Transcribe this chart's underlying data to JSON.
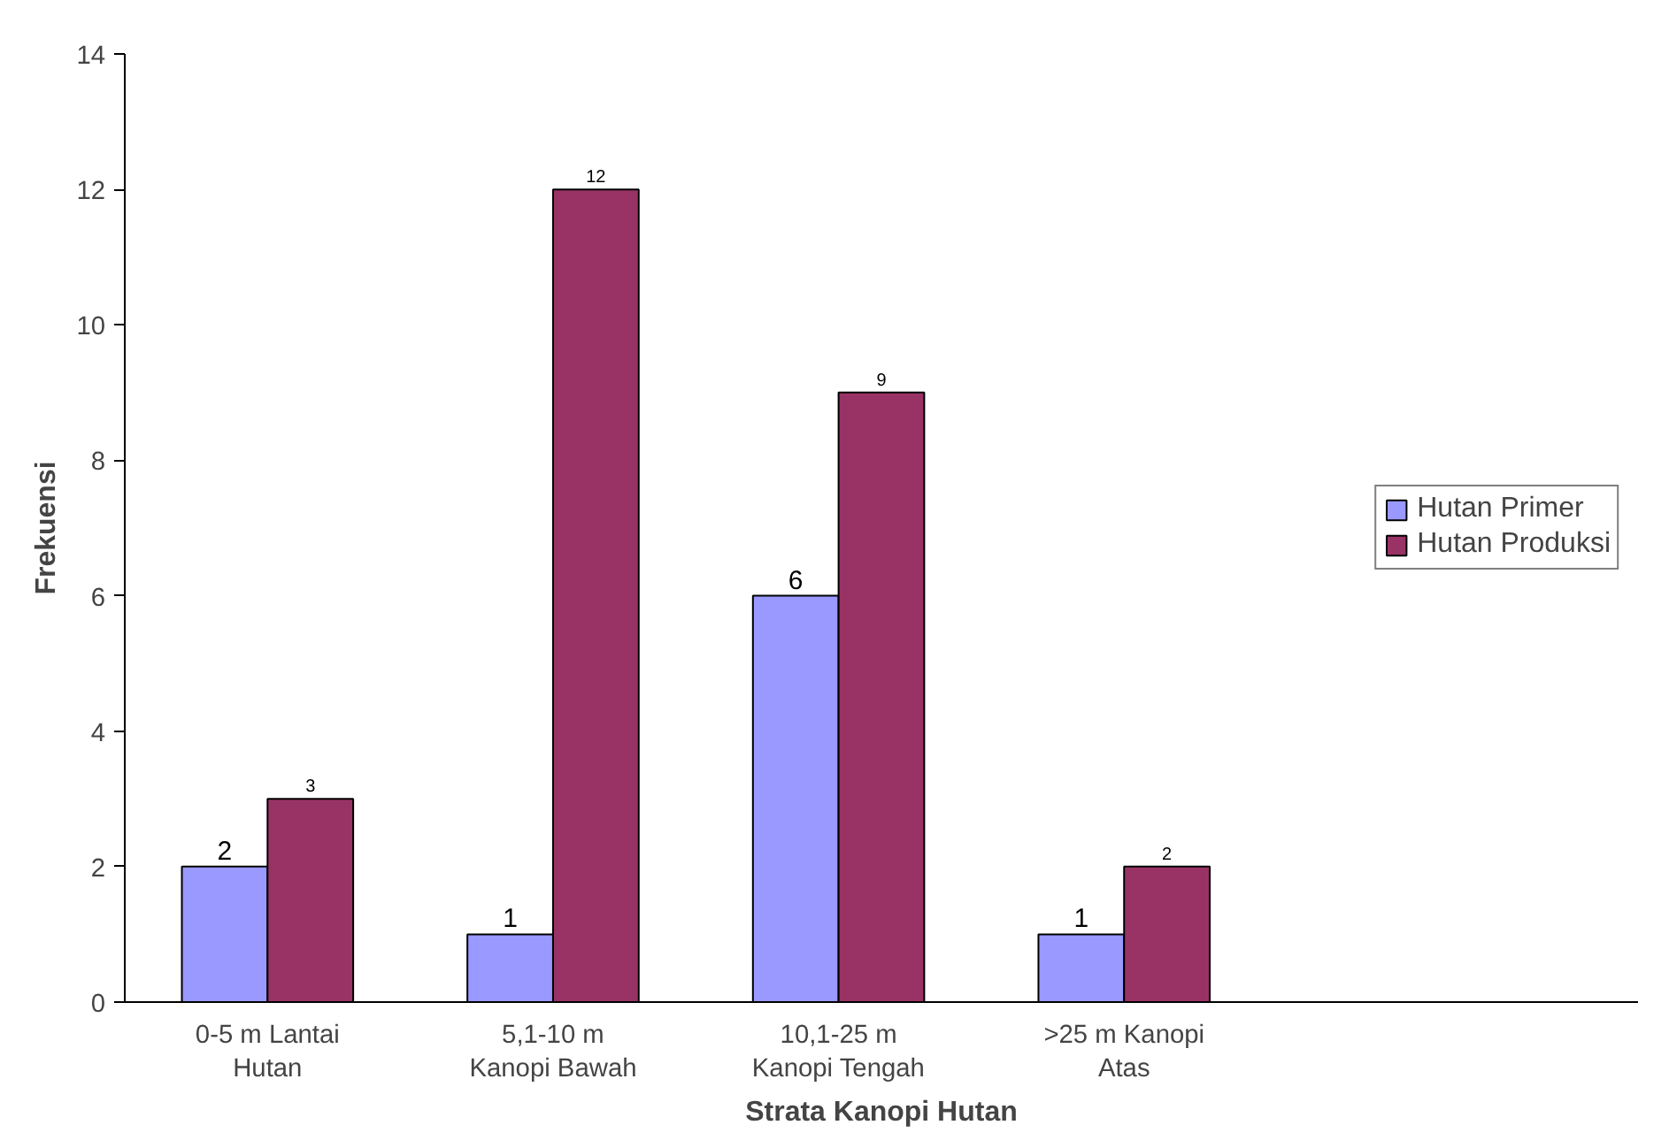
{
  "chart_data": {
    "type": "bar",
    "xlabel": "Strata Kanopi Hutan",
    "ylabel": "Frekuensi",
    "categories": [
      "0-5 m Lantai Hutan",
      "5,1-10 m Kanopi Bawah",
      "10,1-25 m Kanopi Tengah",
      ">25 m Kanopi Atas"
    ],
    "series": [
      {
        "name": "Hutan Primer",
        "color": "#9999ff",
        "values": [
          2,
          1,
          6,
          1
        ]
      },
      {
        "name": "Hutan Produksi",
        "color": "#993366",
        "values": [
          3,
          12,
          9,
          2
        ]
      }
    ],
    "ylim": [
      0,
      14
    ],
    "yticks": [
      0,
      2,
      4,
      6,
      8,
      10,
      12,
      14
    ],
    "grid": false,
    "legend": "right",
    "data_labels": true
  }
}
